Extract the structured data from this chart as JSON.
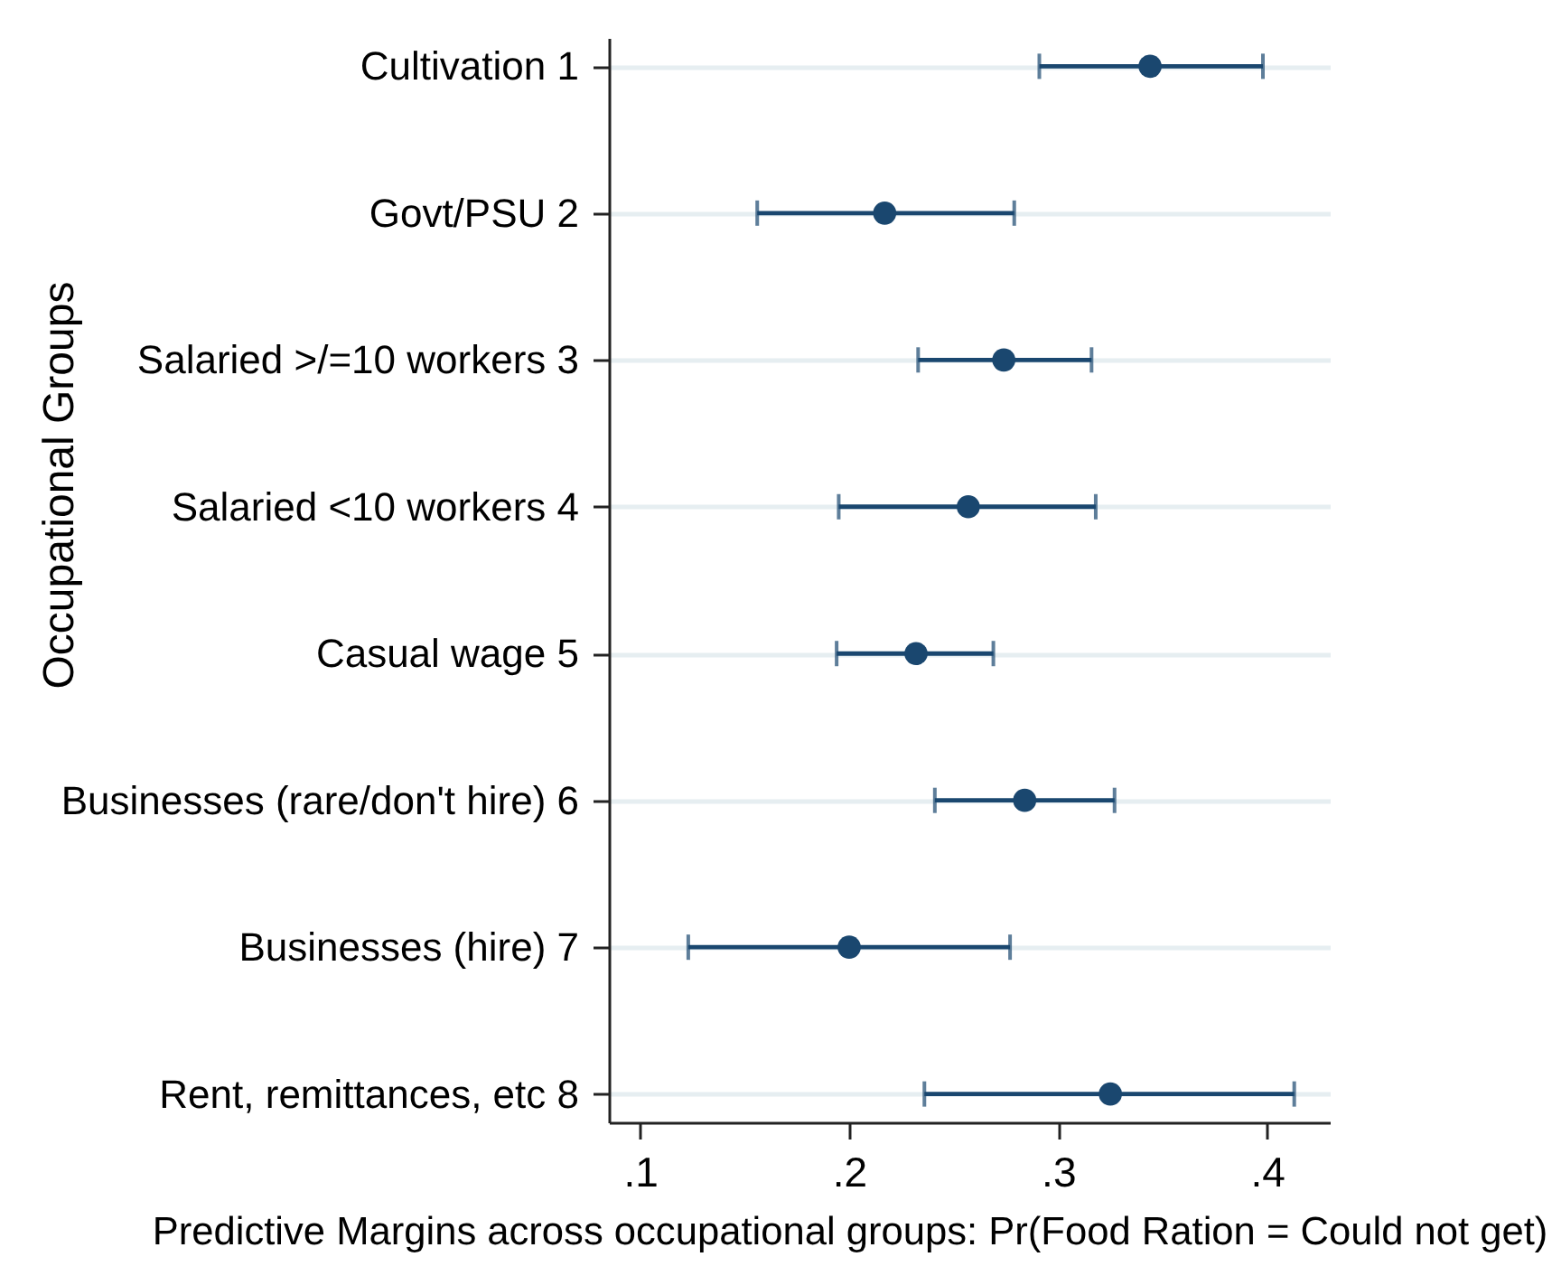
{
  "chart_data": {
    "type": "scatter",
    "orientation": "horizontal",
    "xlabel": "Predictive Margins across occupational groups: Pr(Food Ration = Could not get)",
    "ylabel": "Occupational Groups",
    "categories": [
      "Cultivation 1",
      "Govt/PSU 2",
      "Salaried >/=10 workers 3",
      "Salaried <10 workers 4",
      "Casual wage 5",
      "Businesses (rare/don't hire) 6",
      "Businesses (hire) 7",
      "Rent, remittances, etc 8"
    ],
    "values": [
      0.344,
      0.217,
      0.274,
      0.257,
      0.232,
      0.284,
      0.2,
      0.325
    ],
    "errors": [
      [
        0.291,
        0.398
      ],
      [
        0.156,
        0.279
      ],
      [
        0.233,
        0.316
      ],
      [
        0.195,
        0.318
      ],
      [
        0.194,
        0.269
      ],
      [
        0.241,
        0.327
      ],
      [
        0.123,
        0.277
      ],
      [
        0.236,
        0.413
      ]
    ],
    "color": "#1a476f",
    "marker": "circle",
    "grid": "y",
    "xlim": [
      0.085,
      0.43
    ],
    "xticks": [
      {
        "value": 0.1,
        "label": ".1"
      },
      {
        "value": 0.2,
        "label": ".2"
      },
      {
        "value": 0.3,
        "label": ".3"
      },
      {
        "value": 0.4,
        "label": ".4"
      }
    ]
  }
}
